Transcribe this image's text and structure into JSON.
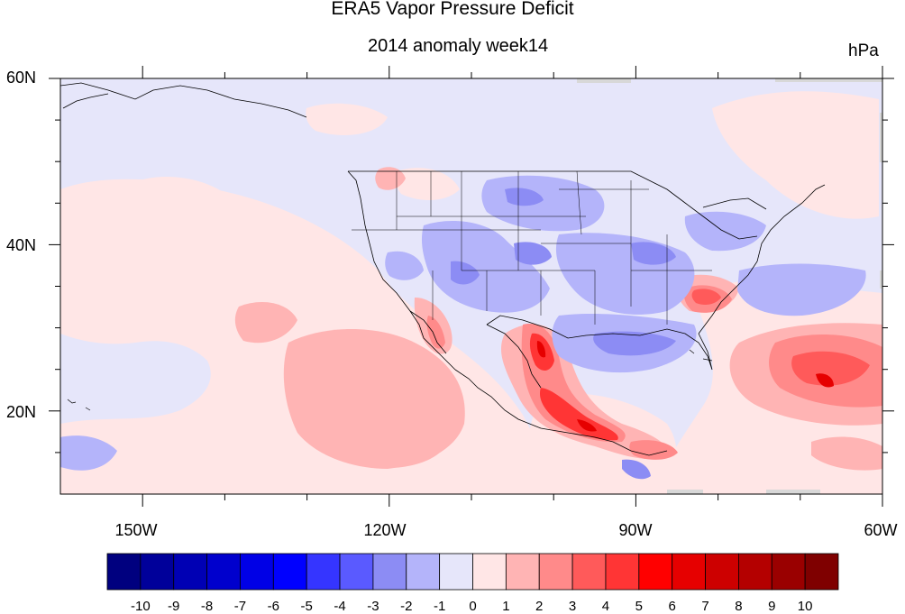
{
  "title": "ERA5 Vapor Pressure Deficit",
  "subtitle": "2014 anomaly week14",
  "units": "hPa",
  "y_axis_labels": [
    "60N",
    "40N",
    "20N"
  ],
  "x_axis_labels": [
    "150W",
    "120W",
    "90W",
    "60W"
  ],
  "colorbar": {
    "labels": [
      "-10",
      "-9",
      "-8",
      "-7",
      "-6",
      "-5",
      "-4",
      "-3",
      "-2",
      "-1",
      "0",
      "1",
      "2",
      "3",
      "4",
      "5",
      "6",
      "7",
      "8",
      "9",
      "10"
    ],
    "colors": [
      "#00007f",
      "#00009a",
      "#0000b4",
      "#0000cd",
      "#0000e6",
      "#0000ff",
      "#3535ff",
      "#5a5aff",
      "#8c8cf4",
      "#b4b4fa",
      "#e6e6fa",
      "#ffe6e6",
      "#ffb4b4",
      "#ff8a8a",
      "#ff5a5a",
      "#ff3535",
      "#ff0000",
      "#e60000",
      "#cd0000",
      "#b40000",
      "#9a0000",
      "#7f0000"
    ]
  },
  "map": {
    "lat_range": [
      10,
      60
    ],
    "lon_range": [
      -160,
      -60
    ],
    "background_color": "#e6e6fa"
  }
}
